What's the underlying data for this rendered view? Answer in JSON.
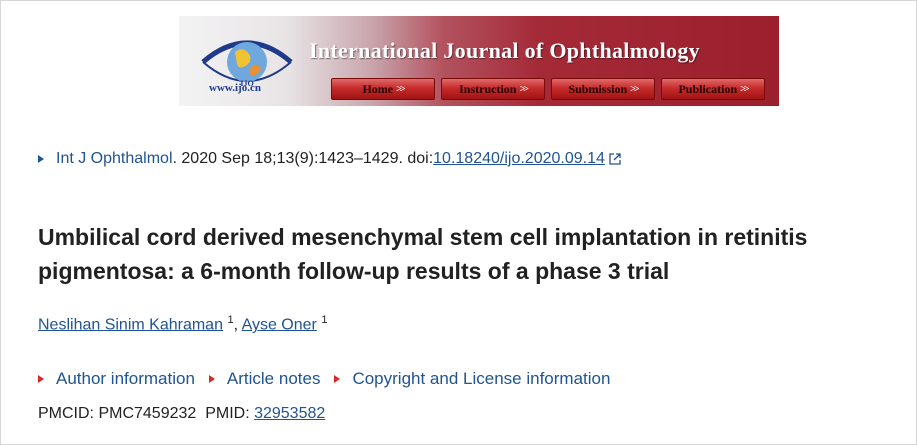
{
  "banner": {
    "journal_title": "International Journal of Ophthalmology",
    "logo_text": "IJO",
    "site": "www.ijo.cn",
    "nav": [
      {
        "label": "Home",
        "arrow": ">>"
      },
      {
        "label": "Instruction",
        "arrow": ">>"
      },
      {
        "label": "Submission",
        "arrow": ">>"
      },
      {
        "label": "Publication",
        "arrow": ">>"
      }
    ]
  },
  "citation": {
    "journal_link": "Int J Ophthalmol",
    "details": ". 2020 Sep 18;13(9):1423–1429. doi: ",
    "doi": "10.18240/ijo.2020.09.14"
  },
  "article": {
    "title": "Umbilical cord derived mesenchymal stem cell implantation in retinitis pigmentosa: a 6-month follow-up results of a phase 3 trial"
  },
  "authors": [
    {
      "name": "Neslihan Sinim Kahraman",
      "aff": "1"
    },
    {
      "name": "Ayse Oner",
      "aff": "1"
    }
  ],
  "sections": [
    "Author information",
    "Article notes",
    "Copyright and License information"
  ],
  "ids": {
    "pmcid_label": "PMCID: ",
    "pmcid": "PMC7459232",
    "pmid_label": "PMID: ",
    "pmid": "32953582"
  },
  "colors": {
    "link": "#205493",
    "accent_red": "#d42a2a",
    "banner_red": "#a52a38"
  }
}
